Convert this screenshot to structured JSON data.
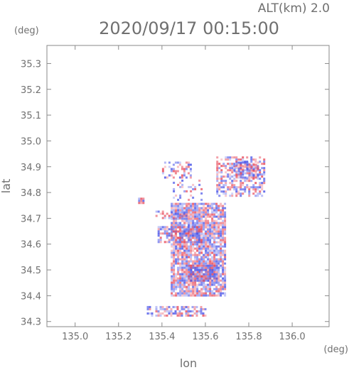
{
  "chart_data": {
    "type": "heatmap",
    "title": "2020/09/17 00:15:00",
    "subtitle": "ALT(km) 2.0",
    "xlabel": "lon",
    "ylabel": "lat",
    "x_unit": "(deg)",
    "y_unit": "(deg)",
    "xlim": [
      134.87,
      136.17
    ],
    "ylim": [
      34.28,
      35.37
    ],
    "x_ticks": [
      135.0,
      135.2,
      135.4,
      135.6,
      135.8,
      136.0
    ],
    "x_tick_labels": [
      "135.0",
      "135.2",
      "135.4",
      "135.6",
      "135.8",
      "136.0"
    ],
    "y_ticks": [
      34.3,
      34.4,
      34.5,
      34.6,
      34.7,
      34.8,
      34.9,
      35.0,
      35.1,
      35.2,
      35.3
    ],
    "y_tick_labels": [
      "34.3",
      "34.4",
      "34.5",
      "34.6",
      "34.7",
      "34.8",
      "34.9",
      "35.0",
      "35.1",
      "35.2",
      "35.3"
    ],
    "grid": false,
    "colors": {
      "positive": "#e84a5a",
      "negative": "#4a55e8",
      "frame": "#8a8a8a",
      "text": "#707070"
    },
    "regions": [
      {
        "lon": [
          135.44,
          135.69
        ],
        "lat": [
          34.4,
          34.76
        ],
        "density": 0.85
      },
      {
        "lon": [
          135.52,
          135.65
        ],
        "lat": [
          34.46,
          34.52
        ],
        "density": 0.9
      },
      {
        "lon": [
          135.38,
          135.58
        ],
        "lat": [
          34.61,
          34.67
        ],
        "density": 0.6
      },
      {
        "lon": [
          135.37,
          135.51
        ],
        "lat": [
          34.7,
          34.73
        ],
        "density": 0.4
      },
      {
        "lon": [
          135.65,
          135.87
        ],
        "lat": [
          34.79,
          34.94
        ],
        "density": 0.55
      },
      {
        "lon": [
          135.73,
          135.84
        ],
        "lat": [
          34.86,
          34.92
        ],
        "density": 0.7
      },
      {
        "lon": [
          135.4,
          135.53
        ],
        "lat": [
          34.86,
          34.92
        ],
        "density": 0.35
      },
      {
        "lon": [
          135.45,
          135.58
        ],
        "lat": [
          34.77,
          34.85
        ],
        "density": 0.2
      },
      {
        "lon": [
          135.33,
          135.6
        ],
        "lat": [
          34.32,
          34.36
        ],
        "density": 0.6
      },
      {
        "lon": [
          135.29,
          135.31
        ],
        "lat": [
          34.76,
          34.78
        ],
        "density": 0.8
      }
    ]
  }
}
